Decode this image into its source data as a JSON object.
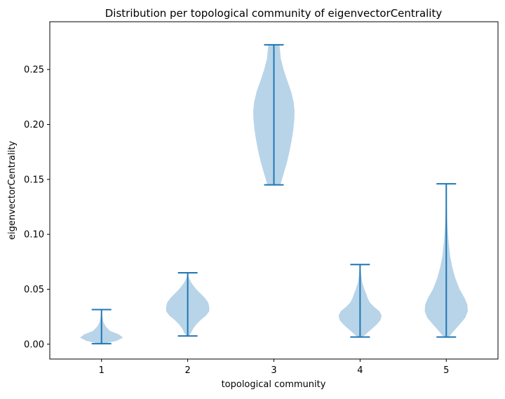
{
  "chart_data": {
    "type": "violin",
    "title": "Distribution per topological community of eigenvectorCentrality",
    "xlabel": "topological community",
    "ylabel": "eigenvectorCentrality",
    "categories": [
      "1",
      "2",
      "3",
      "4",
      "5"
    ],
    "ylim": [
      -0.0135,
      0.2935
    ],
    "yticks": [
      0.0,
      0.05,
      0.1,
      0.15,
      0.2,
      0.25
    ],
    "ytick_labels": [
      "0.00",
      "0.05",
      "0.10",
      "0.15",
      "0.20",
      "0.25"
    ],
    "colors": {
      "body": "#b8d4e8",
      "line": "#1f77b4"
    },
    "violins": [
      {
        "category": "1",
        "min": 0.0005,
        "max": 0.0315,
        "profile": [
          [
            0.0005,
            0.1
          ],
          [
            0.003,
            0.7
          ],
          [
            0.006,
            1.0
          ],
          [
            0.009,
            0.8
          ],
          [
            0.012,
            0.4
          ],
          [
            0.016,
            0.2
          ],
          [
            0.02,
            0.09
          ],
          [
            0.025,
            0.04
          ],
          [
            0.03,
            0.01
          ],
          [
            0.0315,
            0.0
          ]
        ]
      },
      {
        "category": "2",
        "min": 0.0075,
        "max": 0.065,
        "profile": [
          [
            0.0075,
            0.05
          ],
          [
            0.01,
            0.15
          ],
          [
            0.014,
            0.25
          ],
          [
            0.018,
            0.4
          ],
          [
            0.022,
            0.6
          ],
          [
            0.026,
            0.85
          ],
          [
            0.03,
            1.0
          ],
          [
            0.034,
            1.0
          ],
          [
            0.038,
            0.95
          ],
          [
            0.042,
            0.8
          ],
          [
            0.046,
            0.6
          ],
          [
            0.05,
            0.4
          ],
          [
            0.055,
            0.2
          ],
          [
            0.06,
            0.06
          ],
          [
            0.065,
            0.0
          ]
        ]
      },
      {
        "category": "3",
        "min": 0.145,
        "max": 0.2725,
        "profile": [
          [
            0.145,
            0.3
          ],
          [
            0.155,
            0.45
          ],
          [
            0.165,
            0.6
          ],
          [
            0.175,
            0.72
          ],
          [
            0.185,
            0.82
          ],
          [
            0.195,
            0.9
          ],
          [
            0.205,
            0.95
          ],
          [
            0.212,
            0.96
          ],
          [
            0.22,
            0.92
          ],
          [
            0.23,
            0.8
          ],
          [
            0.24,
            0.62
          ],
          [
            0.25,
            0.45
          ],
          [
            0.26,
            0.32
          ],
          [
            0.2725,
            0.26
          ]
        ]
      },
      {
        "category": "4",
        "min": 0.0065,
        "max": 0.0725,
        "profile": [
          [
            0.0065,
            0.12
          ],
          [
            0.01,
            0.32
          ],
          [
            0.014,
            0.55
          ],
          [
            0.018,
            0.78
          ],
          [
            0.022,
            0.95
          ],
          [
            0.026,
            1.0
          ],
          [
            0.03,
            0.9
          ],
          [
            0.034,
            0.65
          ],
          [
            0.038,
            0.45
          ],
          [
            0.042,
            0.35
          ],
          [
            0.046,
            0.28
          ],
          [
            0.05,
            0.2
          ],
          [
            0.056,
            0.1
          ],
          [
            0.063,
            0.05
          ],
          [
            0.0725,
            0.0
          ]
        ]
      },
      {
        "category": "5",
        "min": 0.0065,
        "max": 0.146,
        "profile": [
          [
            0.0065,
            0.12
          ],
          [
            0.012,
            0.35
          ],
          [
            0.018,
            0.62
          ],
          [
            0.024,
            0.88
          ],
          [
            0.03,
            1.0
          ],
          [
            0.036,
            0.98
          ],
          [
            0.042,
            0.85
          ],
          [
            0.05,
            0.62
          ],
          [
            0.06,
            0.42
          ],
          [
            0.07,
            0.28
          ],
          [
            0.08,
            0.18
          ],
          [
            0.095,
            0.1
          ],
          [
            0.11,
            0.05
          ],
          [
            0.125,
            0.025
          ],
          [
            0.146,
            0.0
          ]
        ]
      }
    ]
  }
}
